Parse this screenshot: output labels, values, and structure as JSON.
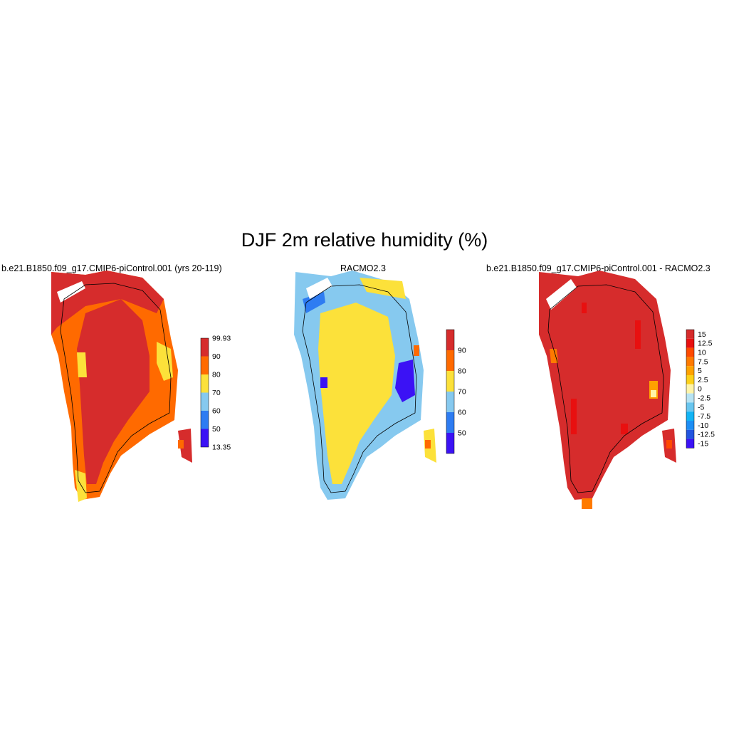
{
  "title": "DJF 2m relative humidity (%)",
  "panels": [
    {
      "title": "b.e21.B1850.f09_g17.CMIP6-piControl.001 (yrs 20-119)",
      "colorbar": {
        "colors": [
          "#3b12f5",
          "#2e7cf2",
          "#86c9ef",
          "#fce13a",
          "#ff6a00",
          "#d62c2c"
        ],
        "labels": [
          "13.35",
          "50",
          "60",
          "70",
          "80",
          "90",
          "99.93"
        ]
      }
    },
    {
      "title": "RACMO2.3",
      "colorbar": {
        "colors": [
          "#3b12f5",
          "#2e7cf2",
          "#86c9ef",
          "#fce13a",
          "#ff6a00",
          "#d62c2c"
        ],
        "labels": [
          "50",
          "60",
          "70",
          "80",
          "90"
        ]
      }
    },
    {
      "title": "b.e21.B1850.f09_g17.CMIP6-piControl.001 - RACMO2.3",
      "colorbar": {
        "colors": [
          "#3b12f5",
          "#2255e0",
          "#1d8ef5",
          "#12b4f5",
          "#69c6ef",
          "#b7e3f3",
          "#fff4a8",
          "#fdd11a",
          "#ffa200",
          "#ff7a00",
          "#ff4a00",
          "#e81010",
          "#d62c2c"
        ],
        "labels": [
          "15",
          "12.5",
          "10",
          "7.5",
          "5",
          "2.5",
          "0",
          "-2.5",
          "-5",
          "-7.5",
          "-10",
          "-12.5",
          "-15"
        ]
      }
    }
  ],
  "colors": {
    "deep_red": "#d62c2c",
    "orange": "#ff6a00",
    "yellow": "#fce13a",
    "light_blue": "#86c9ef",
    "mid_blue": "#2e7cf2",
    "violet": "#3b12f5",
    "bright_red": "#e81010"
  }
}
